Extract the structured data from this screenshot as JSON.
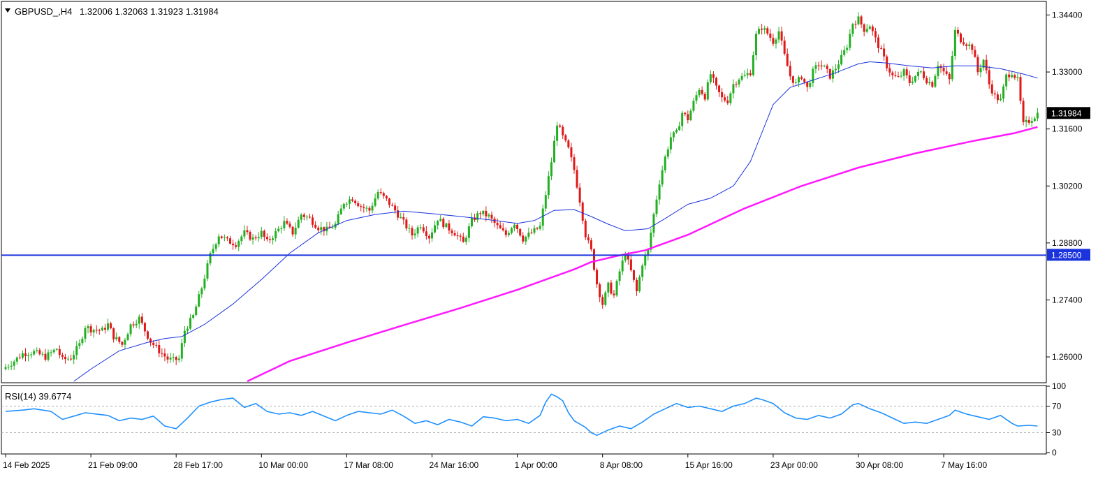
{
  "header": {
    "symbol": "GBPUSD_,H4",
    "ohlc": "1.32006 1.32063 1.31923 1.31984"
  },
  "rsi_header": {
    "label": "RSI(14) 39.6774"
  },
  "colors": {
    "bull": "#22b022",
    "bear": "#e01818",
    "ma_fast": "#1a33dd",
    "ma_slow": "#ff19ff",
    "hline": "#1a33dd",
    "rsi": "#1e90ff",
    "axis": "#000000"
  },
  "chart_data": [
    {
      "type": "candlestick",
      "title": "GBPUSD_,H4",
      "ylim": [
        1.254,
        1.347
      ],
      "y_ticks": [
        "1.34400",
        "1.33000",
        "1.31600",
        "1.30200",
        "1.28800",
        "1.27400",
        "1.26000"
      ],
      "x_labels": [
        "14 Feb 2025",
        "21 Feb 09:00",
        "28 Feb 17:00",
        "10 Mar 00:00",
        "17 Mar 08:00",
        "24 Mar 16:00",
        "1 Apr 00:00",
        "8 Apr 08:00",
        "15 Apr 16:00",
        "23 Apr 00:00",
        "30 Apr 08:00",
        "7 May 16:00"
      ],
      "x_label_index": [
        0,
        30,
        60,
        90,
        120,
        150,
        180,
        210,
        240,
        270,
        300,
        330
      ],
      "horizontal_line": {
        "value": 1.285,
        "label": "1.28500"
      },
      "current_price": {
        "value": 1.31984,
        "label": "1.31984"
      },
      "close_path": [
        [
          0,
          1.2575
        ],
        [
          3,
          1.259
        ],
        [
          6,
          1.2608
        ],
        [
          10,
          1.2612
        ],
        [
          14,
          1.26
        ],
        [
          18,
          1.262
        ],
        [
          20,
          1.2593
        ],
        [
          23,
          1.2598
        ],
        [
          26,
          1.263
        ],
        [
          28,
          1.2675
        ],
        [
          30,
          1.2668
        ],
        [
          34,
          1.2665
        ],
        [
          36,
          1.268
        ],
        [
          38,
          1.265
        ],
        [
          41,
          1.263
        ],
        [
          44,
          1.2678
        ],
        [
          47,
          1.2695
        ],
        [
          49,
          1.2665
        ],
        [
          51,
          1.2638
        ],
        [
          54,
          1.2615
        ],
        [
          57,
          1.2595
        ],
        [
          59,
          1.2592
        ],
        [
          61,
          1.2595
        ],
        [
          63,
          1.2665
        ],
        [
          66,
          1.27
        ],
        [
          69,
          1.277
        ],
        [
          72,
          1.285
        ],
        [
          75,
          1.29
        ],
        [
          78,
          1.2885
        ],
        [
          81,
          1.2878
        ],
        [
          84,
          1.2905
        ],
        [
          87,
          1.289
        ],
        [
          90,
          1.2905
        ],
        [
          92,
          1.2882
        ],
        [
          95,
          1.2905
        ],
        [
          98,
          1.293
        ],
        [
          101,
          1.2905
        ],
        [
          104,
          1.295
        ],
        [
          107,
          1.294
        ],
        [
          110,
          1.2918
        ],
        [
          113,
          1.2912
        ],
        [
          116,
          1.2925
        ],
        [
          119,
          1.298
        ],
        [
          122,
          1.299
        ],
        [
          125,
          1.297
        ],
        [
          128,
          1.296
        ],
        [
          131,
          1.3005
        ],
        [
          134,
          1.2985
        ],
        [
          137,
          1.296
        ],
        [
          140,
          1.293
        ],
        [
          143,
          1.29
        ],
        [
          146,
          1.2925
        ],
        [
          149,
          1.2895
        ],
        [
          152,
          1.294
        ],
        [
          155,
          1.292
        ],
        [
          158,
          1.2905
        ],
        [
          161,
          1.288
        ],
        [
          164,
          1.2935
        ],
        [
          167,
          1.2955
        ],
        [
          170,
          1.2945
        ],
        [
          173,
          1.292
        ],
        [
          176,
          1.29
        ],
        [
          179,
          1.293
        ],
        [
          182,
          1.289
        ],
        [
          185,
          1.2905
        ],
        [
          188,
          1.292
        ],
        [
          190,
          1.3
        ],
        [
          192,
          1.308
        ],
        [
          194,
          1.3175
        ],
        [
          196,
          1.314
        ],
        [
          198,
          1.311
        ],
        [
          200,
          1.306
        ],
        [
          202,
          1.2985
        ],
        [
          204,
          1.29
        ],
        [
          206,
          1.286
        ],
        [
          208,
          1.278
        ],
        [
          210,
          1.273
        ],
        [
          212,
          1.2775
        ],
        [
          214,
          1.275
        ],
        [
          216,
          1.281
        ],
        [
          218,
          1.2855
        ],
        [
          220,
          1.281
        ],
        [
          222,
          1.276
        ],
        [
          224,
          1.283
        ],
        [
          226,
          1.286
        ],
        [
          228,
          1.295
        ],
        [
          230,
          1.303
        ],
        [
          232,
          1.309
        ],
        [
          234,
          1.314
        ],
        [
          236,
          1.315
        ],
        [
          238,
          1.32
        ],
        [
          240,
          1.3185
        ],
        [
          242,
          1.3225
        ],
        [
          244,
          1.326
        ],
        [
          246,
          1.324
        ],
        [
          248,
          1.3295
        ],
        [
          250,
          1.326
        ],
        [
          252,
          1.3235
        ],
        [
          254,
          1.323
        ],
        [
          256,
          1.327
        ],
        [
          258,
          1.3285
        ],
        [
          260,
          1.329
        ],
        [
          262,
          1.33
        ],
        [
          264,
          1.339
        ],
        [
          266,
          1.341
        ],
        [
          268,
          1.3395
        ],
        [
          270,
          1.3375
        ],
        [
          272,
          1.34
        ],
        [
          274,
          1.334
        ],
        [
          276,
          1.329
        ],
        [
          278,
          1.327
        ],
        [
          280,
          1.329
        ],
        [
          282,
          1.326
        ],
        [
          284,
          1.33
        ],
        [
          286,
          1.332
        ],
        [
          288,
          1.331
        ],
        [
          290,
          1.329
        ],
        [
          292,
          1.331
        ],
        [
          294,
          1.3335
        ],
        [
          296,
          1.3365
        ],
        [
          298,
          1.342
        ],
        [
          300,
          1.343
        ],
        [
          302,
          1.3405
        ],
        [
          304,
          1.3415
        ],
        [
          306,
          1.338
        ],
        [
          308,
          1.335
        ],
        [
          310,
          1.3315
        ],
        [
          312,
          1.329
        ],
        [
          314,
          1.3285
        ],
        [
          316,
          1.33
        ],
        [
          318,
          1.3275
        ],
        [
          320,
          1.329
        ],
        [
          322,
          1.33
        ],
        [
          324,
          1.328
        ],
        [
          326,
          1.327
        ],
        [
          328,
          1.332
        ],
        [
          330,
          1.33
        ],
        [
          332,
          1.328
        ],
        [
          334,
          1.34
        ],
        [
          336,
          1.338
        ],
        [
          338,
          1.337
        ],
        [
          340,
          1.336
        ],
        [
          342,
          1.33
        ],
        [
          344,
          1.333
        ],
        [
          346,
          1.327
        ],
        [
          348,
          1.324
        ],
        [
          350,
          1.323
        ],
        [
          352,
          1.329
        ],
        [
          354,
          1.33
        ],
        [
          356,
          1.328
        ],
        [
          358,
          1.317
        ],
        [
          360,
          1.318
        ],
        [
          362,
          1.3192
        ],
        [
          363,
          1.3198
        ]
      ],
      "ma_fast_path": [
        [
          24,
          1.254
        ],
        [
          30,
          1.257
        ],
        [
          40,
          1.2615
        ],
        [
          50,
          1.2636
        ],
        [
          56,
          1.2645
        ],
        [
          62,
          1.265
        ],
        [
          70,
          1.268
        ],
        [
          80,
          1.273
        ],
        [
          90,
          1.279
        ],
        [
          100,
          1.2855
        ],
        [
          110,
          1.2905
        ],
        [
          120,
          1.2935
        ],
        [
          130,
          1.295
        ],
        [
          140,
          1.2958
        ],
        [
          150,
          1.2952
        ],
        [
          160,
          1.2945
        ],
        [
          170,
          1.2937
        ],
        [
          180,
          1.2928
        ],
        [
          186,
          1.2935
        ],
        [
          193,
          1.296
        ],
        [
          200,
          1.2962
        ],
        [
          206,
          1.2945
        ],
        [
          212,
          1.2926
        ],
        [
          218,
          1.291
        ],
        [
          226,
          1.2915
        ],
        [
          232,
          1.294
        ],
        [
          240,
          1.2975
        ],
        [
          248,
          1.299
        ],
        [
          256,
          1.302
        ],
        [
          262,
          1.308
        ],
        [
          266,
          1.315
        ],
        [
          270,
          1.322
        ],
        [
          276,
          1.3262
        ],
        [
          284,
          1.328
        ],
        [
          292,
          1.3298
        ],
        [
          300,
          1.332
        ],
        [
          304,
          1.3325
        ],
        [
          310,
          1.3322
        ],
        [
          318,
          1.3315
        ],
        [
          326,
          1.331
        ],
        [
          334,
          1.3315
        ],
        [
          342,
          1.3315
        ],
        [
          350,
          1.3308
        ],
        [
          358,
          1.3295
        ],
        [
          363,
          1.3285
        ]
      ],
      "ma_slow_path": [
        [
          85,
          1.254
        ],
        [
          100,
          1.259
        ],
        [
          120,
          1.2635
        ],
        [
          140,
          1.2678
        ],
        [
          160,
          1.272
        ],
        [
          180,
          1.2765
        ],
        [
          200,
          1.2815
        ],
        [
          206,
          1.2833
        ],
        [
          215,
          1.2848
        ],
        [
          225,
          1.2862
        ],
        [
          240,
          1.29
        ],
        [
          260,
          1.2965
        ],
        [
          280,
          1.302
        ],
        [
          300,
          1.3065
        ],
        [
          320,
          1.31
        ],
        [
          340,
          1.313
        ],
        [
          355,
          1.315
        ],
        [
          363,
          1.3165
        ]
      ]
    },
    {
      "type": "line",
      "title": "RSI(14) 39.6774",
      "ylim": [
        0,
        100
      ],
      "y_ticks": [
        "100",
        "70",
        "30",
        "0"
      ],
      "levels": [
        70,
        30
      ],
      "rsi_path": [
        [
          0,
          62
        ],
        [
          6,
          64
        ],
        [
          10,
          66
        ],
        [
          16,
          62
        ],
        [
          20,
          50
        ],
        [
          24,
          55
        ],
        [
          28,
          60
        ],
        [
          32,
          58
        ],
        [
          36,
          56
        ],
        [
          40,
          48
        ],
        [
          44,
          52
        ],
        [
          48,
          50
        ],
        [
          52,
          55
        ],
        [
          56,
          40
        ],
        [
          60,
          36
        ],
        [
          64,
          52
        ],
        [
          68,
          70
        ],
        [
          72,
          76
        ],
        [
          76,
          80
        ],
        [
          80,
          82
        ],
        [
          84,
          68
        ],
        [
          88,
          74
        ],
        [
          92,
          62
        ],
        [
          96,
          58
        ],
        [
          100,
          60
        ],
        [
          104,
          56
        ],
        [
          108,
          62
        ],
        [
          112,
          55
        ],
        [
          116,
          48
        ],
        [
          120,
          56
        ],
        [
          124,
          62
        ],
        [
          128,
          60
        ],
        [
          132,
          58
        ],
        [
          136,
          64
        ],
        [
          140,
          55
        ],
        [
          144,
          44
        ],
        [
          148,
          48
        ],
        [
          152,
          42
        ],
        [
          156,
          50
        ],
        [
          160,
          46
        ],
        [
          164,
          40
        ],
        [
          168,
          54
        ],
        [
          172,
          52
        ],
        [
          176,
          48
        ],
        [
          180,
          50
        ],
        [
          184,
          44
        ],
        [
          188,
          56
        ],
        [
          190,
          76
        ],
        [
          192,
          88
        ],
        [
          194,
          84
        ],
        [
          196,
          78
        ],
        [
          198,
          60
        ],
        [
          200,
          48
        ],
        [
          204,
          38
        ],
        [
          206,
          30
        ],
        [
          208,
          26
        ],
        [
          212,
          34
        ],
        [
          216,
          40
        ],
        [
          220,
          36
        ],
        [
          224,
          46
        ],
        [
          228,
          58
        ],
        [
          232,
          66
        ],
        [
          236,
          74
        ],
        [
          240,
          68
        ],
        [
          244,
          70
        ],
        [
          248,
          66
        ],
        [
          252,
          62
        ],
        [
          256,
          70
        ],
        [
          260,
          74
        ],
        [
          264,
          82
        ],
        [
          266,
          80
        ],
        [
          270,
          74
        ],
        [
          274,
          60
        ],
        [
          278,
          52
        ],
        [
          282,
          50
        ],
        [
          286,
          56
        ],
        [
          290,
          52
        ],
        [
          294,
          58
        ],
        [
          298,
          72
        ],
        [
          300,
          74
        ],
        [
          304,
          66
        ],
        [
          308,
          60
        ],
        [
          312,
          52
        ],
        [
          316,
          44
        ],
        [
          320,
          46
        ],
        [
          324,
          44
        ],
        [
          328,
          50
        ],
        [
          332,
          56
        ],
        [
          334,
          64
        ],
        [
          338,
          58
        ],
        [
          342,
          54
        ],
        [
          346,
          50
        ],
        [
          350,
          56
        ],
        [
          354,
          44
        ],
        [
          356,
          40
        ],
        [
          360,
          41
        ],
        [
          363,
          40
        ]
      ]
    }
  ]
}
